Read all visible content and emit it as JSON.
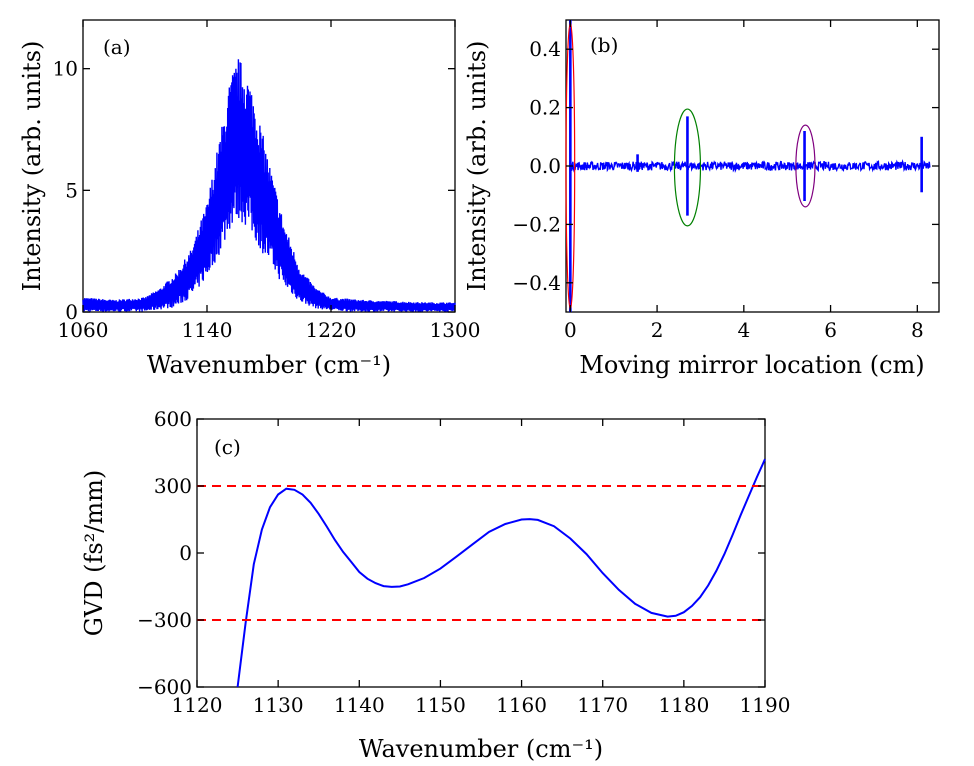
{
  "chart_data": [
    {
      "panel": "(a)",
      "type": "line",
      "xlabel": "Wavenumber (cm⁻¹)",
      "ylabel": "Intensity (arb. units)",
      "xlim": [
        1060,
        1300
      ],
      "ylim": [
        0,
        12
      ],
      "xticks": [
        1060,
        1140,
        1220,
        1300
      ],
      "yticks": [
        0,
        5,
        10
      ],
      "series": [
        {
          "name": "spectrum",
          "color": "#0000ff",
          "envelope": {
            "x": [
              1060,
              1080,
              1100,
              1110,
              1120,
              1130,
              1140,
              1150,
              1155,
              1160,
              1165,
              1170,
              1180,
              1190,
              1200,
              1210,
              1220,
              1240,
              1260,
              1280,
              1300
            ],
            "upper": [
              0.6,
              0.5,
              0.6,
              1.0,
              1.6,
              2.6,
              4.5,
              7.8,
              9.6,
              10.5,
              10.0,
              9.0,
              6.2,
              3.6,
              1.8,
              1.0,
              0.6,
              0.5,
              0.45,
              0.4,
              0.4
            ],
            "lower": [
              0.0,
              0.0,
              0.0,
              0.1,
              0.2,
              0.6,
              1.4,
              2.6,
              3.4,
              3.8,
              3.5,
              3.0,
              2.0,
              1.0,
              0.4,
              0.15,
              0.05,
              0.0,
              0.0,
              0.0,
              0.0
            ]
          }
        }
      ]
    },
    {
      "panel": "(b)",
      "type": "line",
      "xlabel": "Moving mirror location (cm)",
      "ylabel": "Intensity (arb. units)",
      "xlim": [
        -0.1,
        8.5
      ],
      "ylim": [
        -0.5,
        0.5
      ],
      "xticks": [
        0,
        2,
        4,
        6,
        8
      ],
      "yticks": [
        -0.4,
        -0.2,
        0.0,
        0.2,
        0.4
      ],
      "ytick_labels": [
        "−0.4",
        "−0.2",
        "0.0",
        "0.2",
        "0.4"
      ],
      "series": [
        {
          "name": "interferogram",
          "color": "#0000ff",
          "x_range": [
            0,
            8.3
          ],
          "baseline_noise": 0.015,
          "peaks": [
            {
              "x": 0.0,
              "max": 0.5,
              "min": -0.5
            },
            {
              "x": 1.55,
              "max": 0.04,
              "min": -0.02
            },
            {
              "x": 2.7,
              "max": 0.17,
              "min": -0.17
            },
            {
              "x": 5.4,
              "max": 0.12,
              "min": -0.12
            },
            {
              "x": 8.1,
              "max": 0.1,
              "min": -0.09
            }
          ]
        }
      ],
      "annotations": [
        {
          "shape": "ellipse",
          "cx": 0.0,
          "cy": 0.0,
          "rx": 0.1,
          "ry": 0.49,
          "color": "#ff0000"
        },
        {
          "shape": "ellipse",
          "cx": 2.7,
          "cy": -0.005,
          "rx": 0.3,
          "ry": 0.2,
          "color": "#008000"
        },
        {
          "shape": "ellipse",
          "cx": 5.42,
          "cy": 0.0,
          "rx": 0.22,
          "ry": 0.14,
          "color": "#800080"
        }
      ]
    },
    {
      "panel": "(c)",
      "type": "line",
      "xlabel": "Wavenumber (cm⁻¹)",
      "ylabel": "GVD (fs²/mm)",
      "xlim": [
        1120,
        1190
      ],
      "ylim": [
        -600,
        600
      ],
      "xticks": [
        1120,
        1130,
        1140,
        1150,
        1160,
        1170,
        1180,
        1190
      ],
      "yticks": [
        -600,
        -300,
        0,
        300,
        600
      ],
      "ytick_labels": [
        "−600",
        "−300",
        "0",
        "300",
        "600"
      ],
      "series": [
        {
          "name": "GVD",
          "color": "#0000ff",
          "x": [
            1125,
            1126,
            1127,
            1128,
            1129,
            1130,
            1131,
            1132,
            1133,
            1134,
            1135,
            1136,
            1137,
            1138,
            1139,
            1140,
            1141,
            1142,
            1143,
            1144,
            1145,
            1146,
            1148,
            1150,
            1152,
            1154,
            1156,
            1158,
            1160,
            1161,
            1162,
            1164,
            1166,
            1168,
            1170,
            1172,
            1174,
            1176,
            1178,
            1179,
            1180,
            1181,
            1182,
            1183,
            1184,
            1185,
            1186,
            1187,
            1188,
            1189,
            1190
          ],
          "y": [
            -600,
            -310,
            -50,
            105,
            205,
            262,
            288,
            283,
            262,
            225,
            175,
            118,
            58,
            5,
            -40,
            -85,
            -115,
            -135,
            -148,
            -152,
            -150,
            -140,
            -112,
            -70,
            -15,
            40,
            95,
            130,
            150,
            152,
            148,
            120,
            65,
            -5,
            -90,
            -165,
            -228,
            -268,
            -285,
            -281,
            -265,
            -237,
            -198,
            -145,
            -80,
            -5,
            80,
            170,
            255,
            340,
            420
          ]
        },
        {
          "name": "upper limit",
          "color": "#ff0000",
          "style": "dashed",
          "x": [
            1120,
            1190
          ],
          "y": [
            300,
            300
          ]
        },
        {
          "name": "lower limit",
          "color": "#ff0000",
          "style": "dashed",
          "x": [
            1120,
            1190
          ],
          "y": [
            -300,
            -300
          ]
        }
      ]
    }
  ]
}
